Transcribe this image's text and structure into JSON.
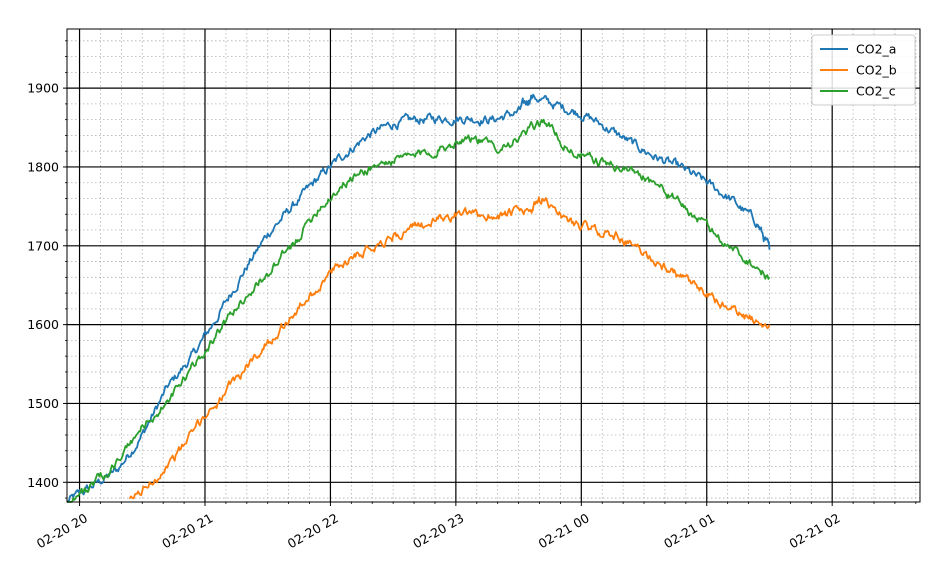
{
  "chart_data": {
    "type": "line",
    "title": "",
    "xlabel": "",
    "ylabel": "",
    "x_ticks": [
      "02-20 20",
      "02-20 21",
      "02-20 22",
      "02-20 23",
      "02-21 00",
      "02-21 01",
      "02-21 02"
    ],
    "x_tick_hours": [
      20,
      21,
      22,
      23,
      24,
      25,
      26
    ],
    "xlim_hours": [
      19.9,
      26.7
    ],
    "y_ticks": [
      1400,
      1500,
      1600,
      1700,
      1800,
      1900
    ],
    "ylim": [
      1375,
      1975
    ],
    "grid": {
      "major": true,
      "minor": true
    },
    "legend_position": "top-right",
    "series": [
      {
        "name": "CO2_a",
        "color": "#1f77b4",
        "x_hours": [
          19.9,
          20.1,
          20.3,
          20.5,
          20.7,
          20.9,
          21.1,
          21.3,
          21.5,
          21.7,
          21.9,
          22.1,
          22.3,
          22.5,
          22.7,
          22.9,
          23.1,
          23.3,
          23.5,
          23.6,
          23.8,
          24.0,
          24.2,
          24.4,
          24.6,
          24.8,
          25.0,
          25.2,
          25.4,
          25.5
        ],
        "values": [
          1375,
          1395,
          1415,
          1460,
          1520,
          1560,
          1610,
          1665,
          1715,
          1750,
          1785,
          1815,
          1840,
          1855,
          1860,
          1862,
          1862,
          1860,
          1870,
          1890,
          1878,
          1868,
          1850,
          1830,
          1812,
          1798,
          1780,
          1758,
          1730,
          1695
        ]
      },
      {
        "name": "CO2_b",
        "color": "#ff7f0e",
        "x_hours": [
          20.4,
          20.6,
          20.8,
          21.0,
          21.2,
          21.4,
          21.6,
          21.8,
          22.0,
          22.2,
          22.4,
          22.6,
          22.8,
          23.0,
          23.2,
          23.4,
          23.6,
          23.7,
          23.9,
          24.1,
          24.3,
          24.5,
          24.7,
          24.9,
          25.1,
          25.3,
          25.5
        ],
        "values": [
          1375,
          1405,
          1440,
          1485,
          1520,
          1560,
          1595,
          1630,
          1665,
          1690,
          1705,
          1718,
          1730,
          1740,
          1738,
          1740,
          1745,
          1758,
          1732,
          1720,
          1712,
          1690,
          1670,
          1648,
          1628,
          1610,
          1600
        ]
      },
      {
        "name": "CO2_c",
        "color": "#2ca02c",
        "x_hours": [
          19.9,
          20.1,
          20.3,
          20.5,
          20.7,
          20.9,
          21.1,
          21.3,
          21.5,
          21.7,
          21.9,
          22.1,
          22.3,
          22.5,
          22.7,
          22.9,
          23.1,
          23.3,
          23.5,
          23.7,
          23.9,
          24.1,
          24.3,
          24.5,
          24.7,
          24.9,
          25.1,
          25.3,
          25.5
        ],
        "values": [
          1375,
          1395,
          1425,
          1470,
          1500,
          1545,
          1590,
          1632,
          1665,
          1700,
          1748,
          1778,
          1798,
          1808,
          1815,
          1825,
          1840,
          1825,
          1835,
          1860,
          1822,
          1808,
          1800,
          1790,
          1765,
          1738,
          1710,
          1685,
          1660
        ]
      }
    ]
  }
}
